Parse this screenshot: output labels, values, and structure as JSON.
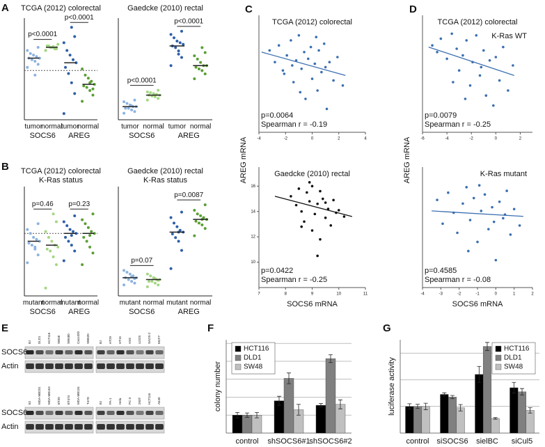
{
  "chart_data": [
    {
      "type": "strip",
      "panel_label": "A",
      "title": "TCGA (2012) colorectal",
      "categories": [
        "tumor",
        "normal",
        "tumor",
        "normal"
      ],
      "groups": [
        "SOCS6",
        "AREG"
      ],
      "colors": [
        "#8db3df",
        "#a5d682",
        "#2f5fa7",
        "#5b9e34"
      ],
      "values": [
        [
          0.2,
          0.4,
          0.6,
          0.7,
          0.8,
          0.8,
          0.9,
          1.0,
          1.1,
          1.3,
          1.5,
          -0.3
        ],
        [
          1.3,
          1.4,
          1.5,
          1.5,
          1.6,
          1.7,
          1.4,
          1.5,
          1.6,
          1.3,
          1.5,
          1.55
        ],
        [
          -2.8,
          -1.5,
          -0.8,
          -0.2,
          0.2,
          0.5,
          0.7,
          1.0,
          1.3,
          1.8,
          2.2,
          2.8
        ],
        [
          -2.0,
          -1.6,
          -1.3,
          -1.1,
          -1.0,
          -0.9,
          -0.7,
          -0.5,
          -0.3,
          0.1,
          -1.2,
          -0.8
        ]
      ],
      "medians": [
        0.8,
        1.5,
        0.5,
        -0.9
      ],
      "p_values": [
        "p<0.0001",
        "p<0.0001"
      ],
      "ylim": [
        -3.2,
        3.4
      ],
      "reference_line": 0
    },
    {
      "type": "strip",
      "title": "Gaedcke (2010) rectal",
      "categories": [
        "tumor",
        "normal",
        "tumor",
        "normal"
      ],
      "groups": [
        "SOCS6",
        "AREG"
      ],
      "colors": [
        "#8db3df",
        "#a5d682",
        "#2f5fa7",
        "#5b9e34"
      ],
      "values": [
        [
          -2.6,
          -2.5,
          -2.4,
          -2.3,
          -2.3,
          -2.2,
          -2.2,
          -2.1,
          -2.0,
          -1.9,
          -1.8,
          -2.15
        ],
        [
          -1.8,
          -1.7,
          -1.6,
          -1.55,
          -1.5,
          -1.5,
          -1.45,
          -1.4,
          -1.35,
          -1.3,
          -1.2,
          -1.5
        ],
        [
          0.3,
          0.8,
          1.2,
          1.4,
          1.5,
          1.6,
          1.7,
          1.8,
          2.0,
          2.2,
          2.4,
          1.0
        ],
        [
          -0.5,
          -0.2,
          0,
          0.1,
          0.2,
          0.3,
          0.3,
          0.5,
          0.7,
          0.9,
          1.1,
          1.4
        ]
      ],
      "medians": [
        -2.2,
        -1.5,
        1.5,
        0.3
      ],
      "p_values": [
        "p<0.0001",
        "p<0.0001"
      ],
      "ylim": [
        -3,
        3.2
      ]
    },
    {
      "type": "strip",
      "panel_label": "B",
      "title": "TCGA (2012) colorectal",
      "subtitle": "K-Ras status",
      "categories": [
        "mutant",
        "normal",
        "mutant",
        "normal"
      ],
      "groups": [
        "SOCS6",
        "AREG"
      ],
      "colors": [
        "#8db3df",
        "#a5d682",
        "#2f5fa7",
        "#5b9e34"
      ],
      "values": [
        [
          -1.5,
          -1.1,
          -0.8,
          -0.6,
          -0.5,
          -0.4,
          -0.3,
          -0.2,
          0,
          0.2,
          0.5,
          -0.7
        ],
        [
          -2.8,
          -1.6,
          -1.2,
          -0.9,
          -0.8,
          -0.7,
          -0.6,
          -0.4,
          -0.2,
          0.1,
          0.6,
          1.0
        ],
        [
          -1.4,
          -0.9,
          -0.6,
          -0.4,
          -0.2,
          0,
          0.1,
          0.2,
          0.4,
          0.6,
          0.9,
          -0.1
        ],
        [
          -1.6,
          -1.0,
          -0.7,
          -0.4,
          -0.2,
          0,
          0.1,
          0.3,
          0.5,
          0.7,
          1.0,
          -0.1
        ]
      ],
      "medians": [
        -0.4,
        -0.6,
        0,
        0
      ],
      "p_values": [
        "p=0.46",
        "p=0.23"
      ],
      "ylim": [
        -3.2,
        2.4
      ],
      "reference_line": 0
    },
    {
      "type": "strip",
      "title": "Gaedcke (2010) rectal",
      "subtitle": "K-Ras status",
      "categories": [
        "mutant",
        "normal",
        "mutant",
        "normal"
      ],
      "groups": [
        "SOCS6",
        "AREG"
      ],
      "colors": [
        "#8db3df",
        "#a5d682",
        "#2f5fa7",
        "#5b9e34"
      ],
      "values": [
        [
          -2.4,
          -2.3,
          -2.2,
          -2.1,
          -2.0,
          -2.0,
          -1.9,
          -1.8,
          -1.7,
          -1.6,
          -2.05,
          -1.95
        ],
        [
          -2.5,
          -2.4,
          -2.3,
          -2.2,
          -2.2,
          -2.1,
          -2.1,
          -2.0,
          -1.9,
          -1.8,
          -2.15,
          -2.05
        ],
        [
          -1.5,
          -0.5,
          0,
          0.2,
          0.4,
          0.5,
          0.6,
          0.8,
          1.0,
          1.3,
          1.6,
          0.5
        ],
        [
          0.3,
          0.7,
          0.9,
          1.0,
          1.1,
          1.2,
          1.3,
          1.4,
          1.5,
          1.7,
          2.0,
          1.2
        ]
      ],
      "medians": [
        -2.0,
        -2.1,
        0.5,
        1.2
      ],
      "p_values": [
        "p=0.07",
        "p=0.0087"
      ],
      "ylim": [
        -3,
        3
      ]
    },
    {
      "type": "scatter",
      "panel_label": "C",
      "title": "TCGA (2012) colorectal",
      "ylabel": "AREG mRNA",
      "color": "#3b6fb0",
      "x": [
        -3.2,
        -2.8,
        -2.5,
        -2.1,
        -1.9,
        -1.6,
        -1.4,
        -1.2,
        -1.0,
        -0.8,
        -0.6,
        -0.5,
        -0.3,
        -0.1,
        0,
        0.2,
        0.4,
        0.5,
        0.7,
        0.9,
        1.1,
        1.3,
        1.6,
        1.9,
        2.3,
        -2.2,
        -0.9,
        0.3,
        1.0,
        -1.5
      ],
      "y": [
        0.9,
        0.2,
        1.2,
        -0.5,
        0.6,
        1.5,
        -1.0,
        0.3,
        1.8,
        -0.2,
        0.8,
        -2.0,
        0.4,
        1.1,
        -0.8,
        0.1,
        -1.5,
        0.9,
        -0.4,
        1.3,
        -2.6,
        0.2,
        -0.9,
        0.5,
        -1.2,
        -0.3,
        -1.6,
        1.7,
        -0.1,
        0.0
      ],
      "trend": {
        "x": [
          -3.8,
          2.5
        ],
        "y": [
          0.8,
          -0.6
        ]
      },
      "annotations": [
        "p=0.0064",
        "Spearman r = -0.19"
      ],
      "xlim": [
        -4,
        4
      ],
      "ylim": [
        -4,
        3
      ],
      "xticks": [
        -4,
        -2,
        0,
        2,
        4
      ]
    },
    {
      "type": "scatter",
      "title": "Gaedcke (2010) rectal",
      "xlabel": "SOCS6 mRNA",
      "color": "#111111",
      "x": [
        8.2,
        8.4,
        8.5,
        8.6,
        8.7,
        8.8,
        8.9,
        9.0,
        9.0,
        9.1,
        9.2,
        9.3,
        9.4,
        9.5,
        9.6,
        9.7,
        9.8,
        9.9,
        10.0,
        10.2,
        8.6,
        8.9,
        9.2,
        9.5,
        9.3
      ],
      "y": [
        15.2,
        14.5,
        15.8,
        14.0,
        13.2,
        15.5,
        14.8,
        12.5,
        16.0,
        13.8,
        14.6,
        11.8,
        15.0,
        13.5,
        14.2,
        12.9,
        14.9,
        13.9,
        14.1,
        13.6,
        12.8,
        16.3,
        10.5,
        14.7,
        15.6
      ],
      "trend": {
        "x": [
          7.6,
          10.5
        ],
        "y": [
          15.2,
          13.6
        ]
      },
      "annotations": [
        "p=0.0422",
        "Spearman r = -0.25"
      ],
      "xlim": [
        7,
        11
      ],
      "ylim": [
        8,
        17.5
      ],
      "xticks": [
        7,
        8,
        9,
        10,
        11
      ],
      "yticks": [
        10,
        12,
        14,
        16
      ]
    },
    {
      "type": "scatter",
      "panel_label": "D",
      "title": "TCGA (2012) colorectal",
      "subtitle": "K-Ras WT",
      "ylabel": "AREG mRNA",
      "color": "#3b6fb0",
      "x": [
        -5.2,
        -4.8,
        -4.5,
        -4.0,
        -3.6,
        -3.2,
        -3.0,
        -2.7,
        -2.4,
        -2.1,
        -1.9,
        -1.6,
        -1.3,
        -1.0,
        -0.8,
        -0.5,
        -0.2,
        0,
        0.3,
        0.6,
        1.0,
        1.4,
        -2.5,
        -1.2,
        -3.5
      ],
      "y": [
        1.2,
        0.8,
        1.6,
        0.4,
        1.9,
        1.0,
        -0.3,
        0.6,
        1.5,
        -1.2,
        0.2,
        1.8,
        -0.6,
        0.9,
        -1.8,
        0.3,
        -2.4,
        0.5,
        -0.9,
        1.1,
        -1.5,
        0.0,
        -2.0,
        -0.1,
        -1.0
      ],
      "trend": {
        "x": [
          -5.5,
          1.5
        ],
        "y": [
          1.1,
          -0.6
        ]
      },
      "annotations": [
        "p=0.0079",
        "Spearman r = -0.25"
      ],
      "xlim": [
        -6,
        3
      ],
      "ylim": [
        -4,
        3
      ],
      "xticks": [
        -6,
        -4,
        -2,
        0,
        2
      ]
    },
    {
      "type": "scatter",
      "title": "K-Ras mutant",
      "xlabel": "SOCS6 mRNA",
      "color": "#3b6fb0",
      "title_align": "right",
      "x": [
        -3.2,
        -2.9,
        -2.6,
        -2.3,
        -2.1,
        -1.8,
        -1.6,
        -1.4,
        -1.2,
        -1.0,
        -0.8,
        -0.6,
        -0.4,
        -0.2,
        0,
        0.2,
        0.4,
        0.6,
        0.8,
        1.0,
        1.3,
        -1.5,
        -0.9,
        -0.1,
        0.5
      ],
      "y": [
        0.8,
        -0.5,
        1.2,
        0.1,
        -1.0,
        0.6,
        1.5,
        -0.3,
        0.9,
        -1.5,
        0.2,
        1.1,
        -0.8,
        0.4,
        -2.5,
        0.7,
        -0.2,
        1.3,
        -1.1,
        0.3,
        -0.6,
        -2.0,
        1.6,
        -0.4,
        0.0
      ],
      "trend": {
        "x": [
          -3.5,
          1.5
        ],
        "y": [
          0.2,
          -0.1
        ]
      },
      "annotations": [
        "p=0.4585",
        "Spearman r = -0.08"
      ],
      "xlim": [
        -4,
        2
      ],
      "ylim": [
        -4,
        2.6
      ],
      "xticks": [
        -4,
        -3,
        -2,
        -1,
        0,
        1,
        2
      ]
    },
    {
      "type": "bar",
      "panel_label": "F",
      "ylabel": "colony number",
      "legend": "top-left",
      "categories": [
        "control",
        "shSOCS6#1",
        "shSOCS6#2"
      ],
      "series": [
        {
          "name": "HCT116",
          "color": "#000000",
          "values": [
            1.0,
            1.8,
            1.55
          ],
          "errors": [
            0.15,
            0.25,
            0.1
          ]
        },
        {
          "name": "DLD1",
          "color": "#808080",
          "values": [
            1.0,
            3.05,
            4.15
          ],
          "errors": [
            0.12,
            0.3,
            0.22
          ]
        },
        {
          "name": "SW48",
          "color": "#c0c0c0",
          "values": [
            1.0,
            1.3,
            1.6
          ],
          "errors": [
            0.15,
            0.3,
            0.25
          ]
        }
      ],
      "ylim": [
        0,
        5.2
      ],
      "ygrid": [
        1,
        2,
        3,
        4,
        5
      ]
    },
    {
      "type": "bar",
      "panel_label": "G",
      "ylabel": "luciferase activity",
      "legend": "top-right",
      "categories": [
        "control",
        "siSOCS6",
        "sielBC",
        "siCul5"
      ],
      "series": [
        {
          "name": "HCT116",
          "color": "#000000",
          "values": [
            1.0,
            1.45,
            2.2,
            1.7
          ],
          "errors": [
            0.1,
            0.06,
            0.3,
            0.2
          ]
        },
        {
          "name": "DLD1",
          "color": "#808080",
          "values": [
            1.0,
            1.35,
            3.25,
            1.55
          ],
          "errors": [
            0.08,
            0.06,
            0.15,
            0.12
          ]
        },
        {
          "name": "SW48",
          "color": "#c0c0c0",
          "values": [
            1.0,
            0.95,
            0.55,
            0.85
          ],
          "errors": [
            0.12,
            0.12,
            0.03,
            0.1
          ]
        }
      ],
      "ylim": [
        0,
        3.5
      ],
      "ygrid": [
        1,
        2,
        3
      ]
    }
  ],
  "blot": {
    "panel_label": "E",
    "blocks": [
      {
        "lanes": [
          [
            "BJ",
            "DLD1",
            "HCT116",
            "SW48",
            "SW480",
            "Caco320",
            "SW620"
          ],
          [
            "BJ",
            "HT29",
            "HT15",
            "ASS",
            "U2OS",
            "SAOS-2",
            "MCF7"
          ]
        ],
        "rows": [
          "SOCS6",
          "Actin"
        ]
      },
      {
        "lanes": [
          [
            "BJ",
            "MDA-MB231",
            "MDA-MB153",
            "BT20",
            "BT474",
            "MDA-MB134",
            "T47D"
          ],
          [
            "BJ",
            "PA-1",
            "Hela",
            "PC-3",
            "293T",
            "HCT116",
            "A549"
          ]
        ],
        "rows": [
          "SOCS6",
          "Actin"
        ]
      }
    ]
  }
}
